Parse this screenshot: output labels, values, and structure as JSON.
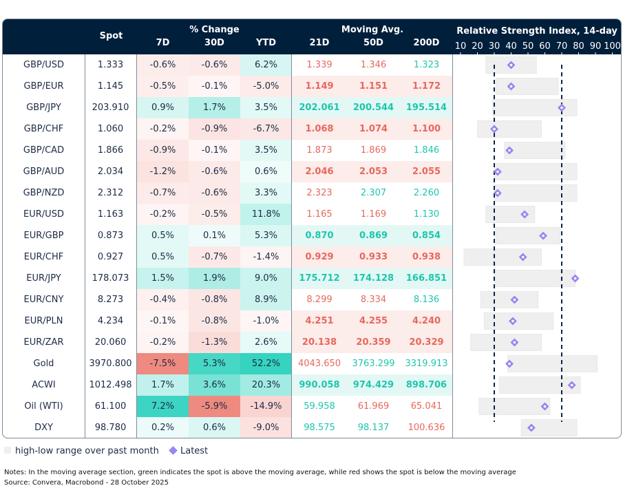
{
  "header": {
    "spot": "Spot",
    "pct_change": "% Change",
    "d7": "7D",
    "d30": "30D",
    "ytd": "YTD",
    "moving_avg": "Moving Avg.",
    "ma21": "21D",
    "ma50": "50D",
    "ma200": "200D",
    "rsi_title": "Relative Strength Index, 14-day"
  },
  "colors": {
    "header_bg": "#001f3b",
    "positive": "#35d3c0",
    "negative": "#ee8a80",
    "ma_above": "#1dc6ae",
    "ma_below": "#e8675c",
    "range_bar": "#efefef",
    "latest_marker": "#9b86f0",
    "threshold_line": "#0d2340"
  },
  "chart_data": {
    "type": "table",
    "rsi_axis": {
      "ticks": [
        10,
        20,
        30,
        40,
        50,
        60,
        70,
        80,
        90,
        100
      ],
      "range": [
        10,
        100
      ],
      "thresholds": [
        30,
        70
      ]
    },
    "rows": [
      {
        "name": "GBP/USD",
        "spot": "1.333",
        "d7": -0.6,
        "d30": -0.6,
        "ytd": 6.2,
        "ma": [
          "1.339",
          "1.346",
          "1.323"
        ],
        "ma_above": [
          false,
          false,
          true
        ],
        "bold": false,
        "rsi_low": 25,
        "rsi_high": 55,
        "rsi": 40
      },
      {
        "name": "GBP/EUR",
        "spot": "1.145",
        "d7": -0.5,
        "d30": -0.1,
        "ytd": -5.0,
        "ma": [
          "1.149",
          "1.151",
          "1.172"
        ],
        "ma_above": [
          false,
          false,
          false
        ],
        "bold": true,
        "rsi_low": 31,
        "rsi_high": 68,
        "rsi": 40
      },
      {
        "name": "GBP/JPY",
        "spot": "203.910",
        "d7": 0.9,
        "d30": 1.7,
        "ytd": 3.5,
        "ma": [
          "202.061",
          "200.544",
          "195.514"
        ],
        "ma_above": [
          true,
          true,
          true
        ],
        "bold": true,
        "rsi_low": 29,
        "rsi_high": 79,
        "rsi": 70
      },
      {
        "name": "GBP/CHF",
        "spot": "1.060",
        "d7": -0.2,
        "d30": -0.9,
        "ytd": -6.7,
        "ma": [
          "1.068",
          "1.074",
          "1.100"
        ],
        "ma_above": [
          false,
          false,
          false
        ],
        "bold": true,
        "rsi_low": 20,
        "rsi_high": 58,
        "rsi": 30
      },
      {
        "name": "GBP/CAD",
        "spot": "1.866",
        "d7": -0.9,
        "d30": -0.1,
        "ytd": 3.5,
        "ma": [
          "1.873",
          "1.869",
          "1.846"
        ],
        "ma_above": [
          false,
          false,
          true
        ],
        "bold": false,
        "rsi_low": 36,
        "rsi_high": 72,
        "rsi": 39
      },
      {
        "name": "GBP/AUD",
        "spot": "2.034",
        "d7": -1.2,
        "d30": -0.6,
        "ytd": 0.6,
        "ma": [
          "2.046",
          "2.053",
          "2.055"
        ],
        "ma_above": [
          false,
          false,
          false
        ],
        "bold": true,
        "rsi_low": 30,
        "rsi_high": 79,
        "rsi": 32
      },
      {
        "name": "GBP/NZD",
        "spot": "2.312",
        "d7": -0.7,
        "d30": -0.6,
        "ytd": 3.3,
        "ma": [
          "2.323",
          "2.307",
          "2.260"
        ],
        "ma_above": [
          false,
          true,
          true
        ],
        "bold": false,
        "rsi_low": 30,
        "rsi_high": 79,
        "rsi": 32
      },
      {
        "name": "EUR/USD",
        "spot": "1.163",
        "d7": -0.2,
        "d30": -0.5,
        "ytd": 11.8,
        "ma": [
          "1.165",
          "1.169",
          "1.130"
        ],
        "ma_above": [
          false,
          false,
          true
        ],
        "bold": false,
        "rsi_low": 25,
        "rsi_high": 54,
        "rsi": 48
      },
      {
        "name": "EUR/GBP",
        "spot": "0.873",
        "d7": 0.5,
        "d30": 0.1,
        "ytd": 5.3,
        "ma": [
          "0.870",
          "0.869",
          "0.854"
        ],
        "ma_above": [
          true,
          true,
          true
        ],
        "bold": true,
        "rsi_low": 31,
        "rsi_high": 69,
        "rsi": 59
      },
      {
        "name": "EUR/CHF",
        "spot": "0.927",
        "d7": 0.5,
        "d30": -0.7,
        "ytd": -1.4,
        "ma": [
          "0.929",
          "0.933",
          "0.938"
        ],
        "ma_above": [
          false,
          false,
          false
        ],
        "bold": true,
        "rsi_low": 12,
        "rsi_high": 58,
        "rsi": 47
      },
      {
        "name": "EUR/JPY",
        "spot": "178.073",
        "d7": 1.5,
        "d30": 1.9,
        "ytd": 9.0,
        "ma": [
          "175.712",
          "174.128",
          "166.851"
        ],
        "ma_above": [
          true,
          true,
          true
        ],
        "bold": true,
        "rsi_low": 30,
        "rsi_high": 78,
        "rsi": 78
      },
      {
        "name": "EUR/CNY",
        "spot": "8.273",
        "d7": -0.4,
        "d30": -0.8,
        "ytd": 8.9,
        "ma": [
          "8.299",
          "8.334",
          "8.136"
        ],
        "ma_above": [
          false,
          false,
          true
        ],
        "bold": false,
        "rsi_low": 22,
        "rsi_high": 56,
        "rsi": 42
      },
      {
        "name": "EUR/PLN",
        "spot": "4.234",
        "d7": -0.1,
        "d30": -0.8,
        "ytd": -1.0,
        "ma": [
          "4.251",
          "4.255",
          "4.240"
        ],
        "ma_above": [
          false,
          false,
          false
        ],
        "bold": true,
        "rsi_low": 24,
        "rsi_high": 65,
        "rsi": 41
      },
      {
        "name": "EUR/ZAR",
        "spot": "20.060",
        "d7": -0.2,
        "d30": -1.3,
        "ytd": 2.6,
        "ma": [
          "20.138",
          "20.359",
          "20.329"
        ],
        "ma_above": [
          false,
          false,
          false
        ],
        "bold": true,
        "rsi_low": 16,
        "rsi_high": 58,
        "rsi": 42
      },
      {
        "name": "Gold",
        "spot": "3970.800",
        "d7": -7.5,
        "d30": 5.3,
        "ytd": 52.2,
        "ma": [
          "4043.650",
          "3763.299",
          "3319.913"
        ],
        "ma_above": [
          false,
          true,
          true
        ],
        "bold": false,
        "rsi_low": 38,
        "rsi_high": 91,
        "rsi": 39
      },
      {
        "name": "ACWI",
        "spot": "1012.498",
        "d7": 1.7,
        "d30": 3.6,
        "ytd": 20.3,
        "ma": [
          "990.058",
          "974.429",
          "898.706"
        ],
        "ma_above": [
          true,
          true,
          true
        ],
        "bold": true,
        "rsi_low": 33,
        "rsi_high": 81,
        "rsi": 76
      },
      {
        "name": "Oil (WTI)",
        "spot": "61.100",
        "d7": 7.2,
        "d30": -5.9,
        "ytd": -14.9,
        "ma": [
          "59.958",
          "61.969",
          "65.041"
        ],
        "ma_above": [
          true,
          false,
          false
        ],
        "bold": false,
        "rsi_low": 21,
        "rsi_high": 63,
        "rsi": 60
      },
      {
        "name": "DXY",
        "spot": "98.780",
        "d7": 0.2,
        "d30": 0.6,
        "ytd": -9.0,
        "ma": [
          "98.575",
          "98.137",
          "100.636"
        ],
        "ma_above": [
          true,
          true,
          false
        ],
        "bold": false,
        "rsi_low": 46,
        "rsi_high": 79,
        "rsi": 52
      }
    ]
  },
  "legend": {
    "range": "high-low range over past month",
    "latest": "Latest"
  },
  "notes": {
    "line1": "Notes: In the moving average section, green indicates the spot is above the moving average, while red shows the spot is below the moving average",
    "line2": "Source: Convera, Macrobond - 28 October 2025"
  }
}
